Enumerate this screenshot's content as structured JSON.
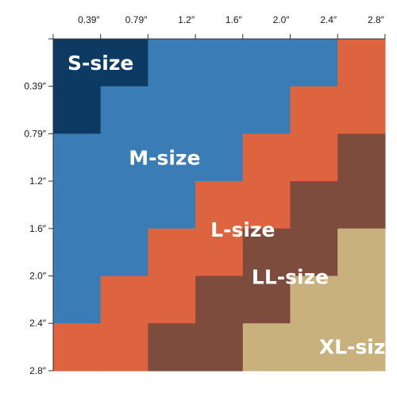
{
  "chart_data": {
    "type": "heatmap",
    "x_ticks": [
      "0.39″",
      "0.79″",
      "1.2″",
      "1.6″",
      "2.0″",
      "2.4″",
      "2.8″"
    ],
    "y_ticks": [
      "0.39″",
      "0.79″",
      "1.2″",
      "1.6″",
      "2.0″",
      "2.4″",
      "2.8″"
    ],
    "categories": [
      "S-size",
      "M-size",
      "L-size",
      "LL-size",
      "XL-size"
    ],
    "colors": {
      "S-size": "#0d3a63",
      "M-size": "#3a7cb6",
      "L-size": "#de6440",
      "LL-size": "#7d4c3d",
      "XL-size": "#c9b17e"
    },
    "label_colors": {
      "S-size": "#ffffff",
      "M-size": "#ffffff",
      "L-size": "#ffffff",
      "LL-size": "#ffffff",
      "XL-size": "#ffffff"
    },
    "grid": [
      [
        "S-size",
        "S-size",
        "M-size",
        "M-size",
        "M-size",
        "M-size",
        "L-size"
      ],
      [
        "S-size",
        "M-size",
        "M-size",
        "M-size",
        "M-size",
        "L-size",
        "L-size"
      ],
      [
        "M-size",
        "M-size",
        "M-size",
        "M-size",
        "L-size",
        "L-size",
        "LL-size"
      ],
      [
        "M-size",
        "M-size",
        "M-size",
        "L-size",
        "L-size",
        "LL-size",
        "LL-size"
      ],
      [
        "M-size",
        "M-size",
        "L-size",
        "L-size",
        "LL-size",
        "LL-size",
        "XL-size"
      ],
      [
        "M-size",
        "L-size",
        "L-size",
        "LL-size",
        "LL-size",
        "XL-size",
        "XL-size"
      ],
      [
        "L-size",
        "L-size",
        "LL-size",
        "LL-size",
        "XL-size",
        "XL-size",
        "XL-size"
      ]
    ]
  }
}
